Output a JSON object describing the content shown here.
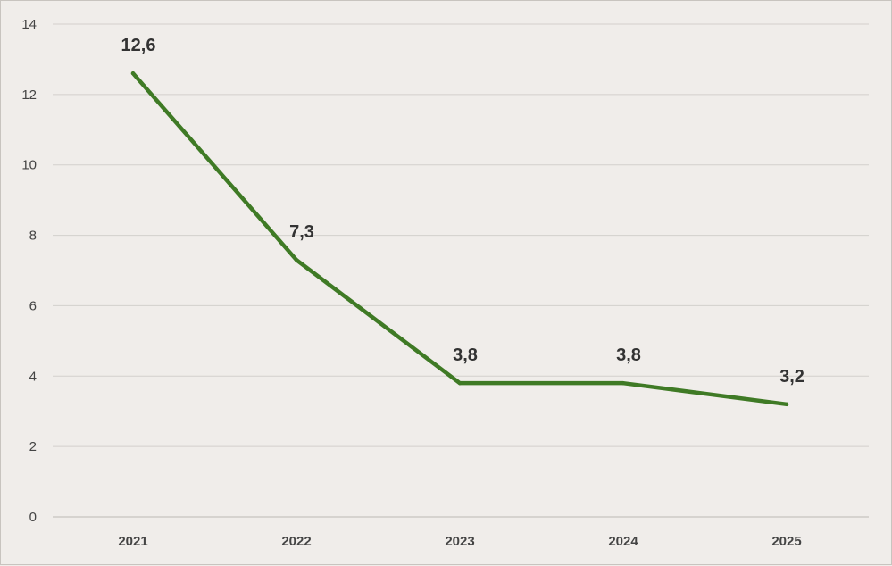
{
  "chart_data": {
    "type": "line",
    "categories": [
      "2021",
      "2022",
      "2023",
      "2024",
      "2025"
    ],
    "series": [
      {
        "values": [
          12.6,
          7.3,
          3.8,
          3.8,
          3.2
        ]
      }
    ],
    "data_labels": [
      "12,6",
      "7,3",
      "3,8",
      "3,8",
      "3,2"
    ],
    "y_ticks": [
      "0",
      "2",
      "4",
      "6",
      "8",
      "10",
      "12",
      "14"
    ],
    "ylim": [
      0,
      14
    ],
    "title": "",
    "xlabel": "",
    "ylabel": "",
    "grid": "horizontal",
    "legend": "none",
    "line_color": "#3f7a25"
  }
}
